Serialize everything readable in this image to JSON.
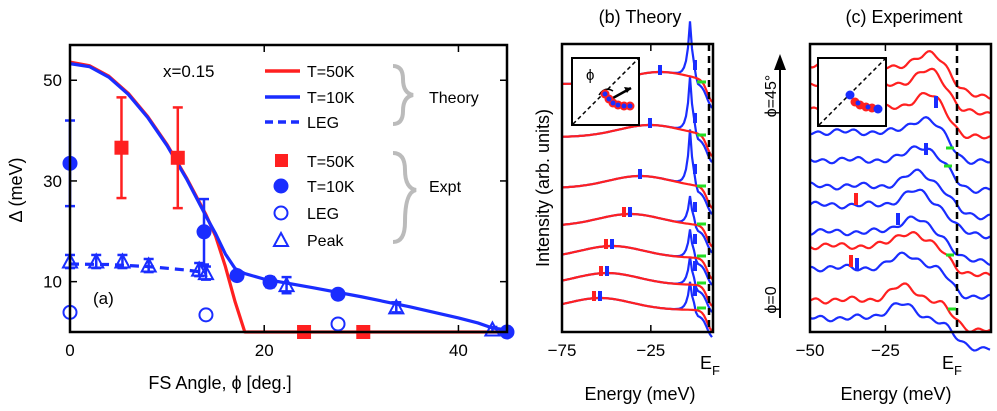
{
  "chart_data": [
    {
      "panel": "(a)",
      "type": "line",
      "xlabel": "FS Angle, ϕ [deg.]",
      "ylabel": "Δ (meV)",
      "xlim": [
        0,
        45
      ],
      "ylim": [
        0,
        57
      ],
      "xticks": [
        "0",
        "20",
        "40"
      ],
      "xtick_values": [
        0,
        20,
        40
      ],
      "yticks": [
        "10",
        "30",
        "50"
      ],
      "ytick_values": [
        10,
        30,
        50
      ],
      "annotation": "x=0.15",
      "panel_label": "(a)",
      "brace_labels": [
        "Theory",
        "Expt"
      ],
      "series": [
        {
          "name": "T=50K",
          "group": "Theory",
          "style": "line",
          "color": "#ff2020",
          "x": [
            0,
            2,
            4,
            6,
            8,
            10,
            12,
            14,
            15,
            16,
            17,
            18,
            19,
            45
          ],
          "y": [
            53.6,
            52.9,
            50.8,
            47.4,
            42.8,
            37.2,
            30.6,
            23.3,
            19.0,
            13.0,
            6.0,
            0,
            0,
            0
          ]
        },
        {
          "name": "T=10K",
          "group": "Theory",
          "style": "line",
          "color": "#1a2dff",
          "x": [
            0,
            2,
            4,
            6,
            8,
            10,
            12,
            14,
            15,
            16,
            17,
            18,
            20,
            25,
            30,
            35,
            40,
            42,
            43.5,
            45
          ],
          "y": [
            53.3,
            52.7,
            50.6,
            47.2,
            42.6,
            37.0,
            30.4,
            23.0,
            19.5,
            15.5,
            12.6,
            11.6,
            10.5,
            8.8,
            7.0,
            5.0,
            2.8,
            1.8,
            0.8,
            0.4
          ]
        },
        {
          "name": "LEG",
          "group": "Theory",
          "style": "dashed",
          "color": "#1a2dff",
          "x": [
            0,
            4,
            8,
            12,
            14
          ],
          "y": [
            13.5,
            13.4,
            13.0,
            12.3,
            11.8
          ]
        },
        {
          "name": "T=50K",
          "group": "Expt",
          "style": "filled-square",
          "color": "#ff2020",
          "x": [
            5.3,
            11.1,
            24.1,
            30.2
          ],
          "y": [
            36.6,
            34.6,
            0,
            0
          ],
          "err": [
            10,
            10,
            0,
            0
          ]
        },
        {
          "name": "T=10K",
          "group": "Expt",
          "style": "filled-circle",
          "color": "#1a2dff",
          "x": [
            0,
            13.8,
            17.2,
            20.6,
            27.6,
            45
          ],
          "y": [
            33.5,
            19.9,
            11.2,
            9.9,
            7.5,
            0
          ],
          "err": [
            8.5,
            6.5,
            0,
            1,
            0,
            0
          ]
        },
        {
          "name": "LEG",
          "group": "Expt",
          "style": "open-circle",
          "color": "#1a2dff",
          "x": [
            0,
            14,
            27.6
          ],
          "y": [
            3.9,
            3.4,
            1.6
          ]
        },
        {
          "name": "Peak",
          "group": "Expt",
          "style": "open-triangle",
          "color": "#1a2dff",
          "x": [
            0,
            2.7,
            5.4,
            8.1,
            13.3,
            14.0,
            22.3,
            33.6,
            43.5
          ],
          "y": [
            14.0,
            14.0,
            14.0,
            13.2,
            12.4,
            11.7,
            9.3,
            4.9,
            0.5
          ],
          "err": [
            1.3,
            1.3,
            1.3,
            1.3,
            1.3,
            1.3,
            1.6,
            1.0,
            0.5
          ]
        }
      ]
    },
    {
      "panel": "(b)",
      "type": "line",
      "title": "(b) Theory",
      "xlabel": "Energy (meV)",
      "ylabel": "Intensity (arb. units)",
      "xlim": [
        -75,
        10
      ],
      "xticks": [
        "−75",
        "−25"
      ],
      "xtick_values": [
        -75,
        -25
      ],
      "ef_label": "E",
      "ef_sub": "F",
      "inset_label": "ϕ"
    },
    {
      "panel": "(c)",
      "type": "line",
      "title": "(c) Experiment",
      "xlabel": "Energy (meV)",
      "xlim": [
        -50,
        10
      ],
      "xticks": [
        "−50",
        "−25"
      ],
      "xtick_values": [
        -50,
        -25
      ],
      "ef_label": "E",
      "ef_sub": "F",
      "angle_top": "ϕ=45°",
      "angle_bottom": "ϕ=0"
    }
  ]
}
